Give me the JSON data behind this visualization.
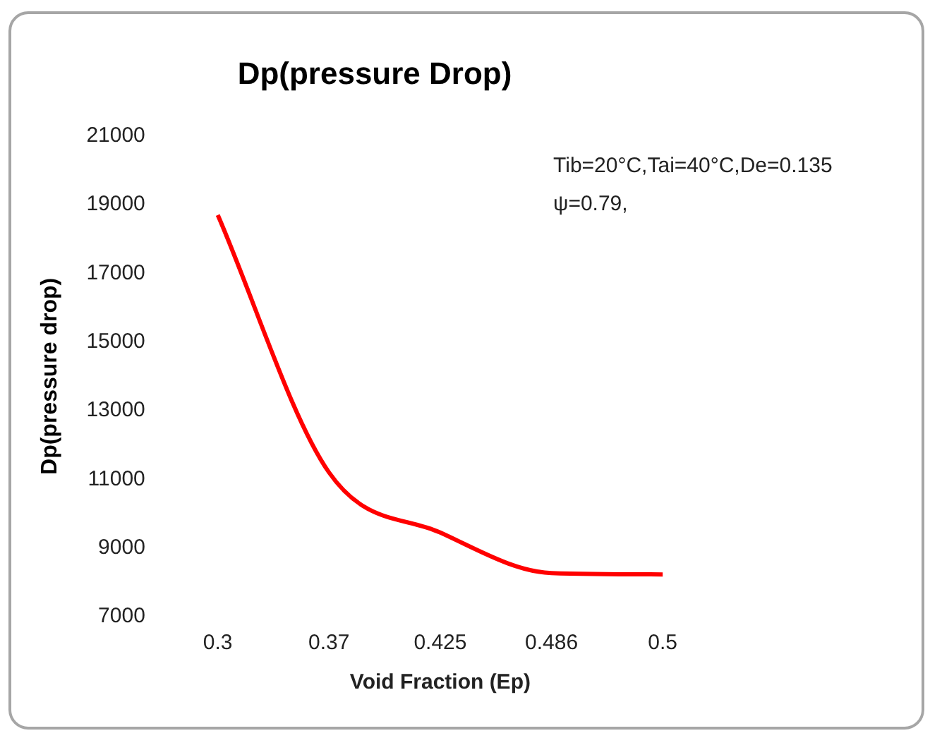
{
  "chart_data": {
    "type": "line",
    "title": "Dp(pressure Drop)",
    "xlabel": "Void Fraction (Ep)",
    "ylabel": "Dp(pressure drop)",
    "categories": [
      "0.3",
      "0.37",
      "0.425",
      "0.486",
      "0.5"
    ],
    "series": [
      {
        "color": "#ff0000",
        "values": [
          18700,
          11200,
          9450,
          8270,
          8230
        ]
      }
    ],
    "ylim": [
      7000,
      21000
    ],
    "yticks": [
      7000,
      9000,
      11000,
      13000,
      15000,
      17000,
      19000,
      21000
    ],
    "annotations": [
      "Tib=20°C,Tai=40°C,De=0.135",
      "ψ=0.79,"
    ],
    "grid": false,
    "legend": false,
    "marker": "none",
    "line_style": "solid"
  }
}
